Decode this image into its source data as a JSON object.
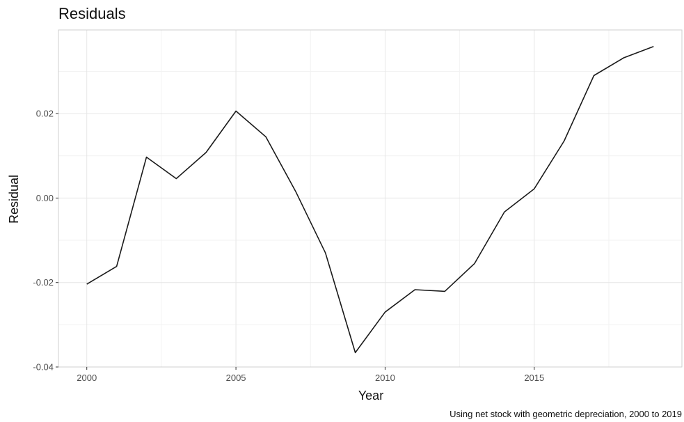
{
  "chart_data": {
    "type": "line",
    "title": "Residuals",
    "xlabel": "Year",
    "ylabel": "Residual",
    "caption": "Using net stock with geometric depreciation, 2000 to 2019",
    "xlim": [
      1999.05,
      2019.95
    ],
    "ylim": [
      -0.04,
      0.0398
    ],
    "x_ticks": [
      2000,
      2005,
      2010,
      2015
    ],
    "x_tick_labels": [
      "2000",
      "2005",
      "2010",
      "2015"
    ],
    "y_ticks": [
      -0.04,
      -0.02,
      0.0,
      0.02
    ],
    "y_tick_labels": [
      "-0.04",
      "-0.02",
      "0.00",
      "0.02"
    ],
    "grid": true,
    "series": [
      {
        "x": [
          2000,
          2001,
          2002,
          2003,
          2004,
          2005,
          2006,
          2007,
          2008,
          2009,
          2010,
          2011,
          2012,
          2013,
          2014,
          2015,
          2016,
          2017,
          2018,
          2019
        ],
        "values": [
          -0.0204,
          -0.0162,
          0.0097,
          0.0046,
          0.0108,
          0.0206,
          0.0145,
          0.0016,
          -0.013,
          -0.0366,
          -0.027,
          -0.0217,
          -0.0221,
          -0.0155,
          -0.0033,
          0.0022,
          0.0135,
          0.029,
          0.0332,
          0.0359
        ]
      }
    ]
  }
}
